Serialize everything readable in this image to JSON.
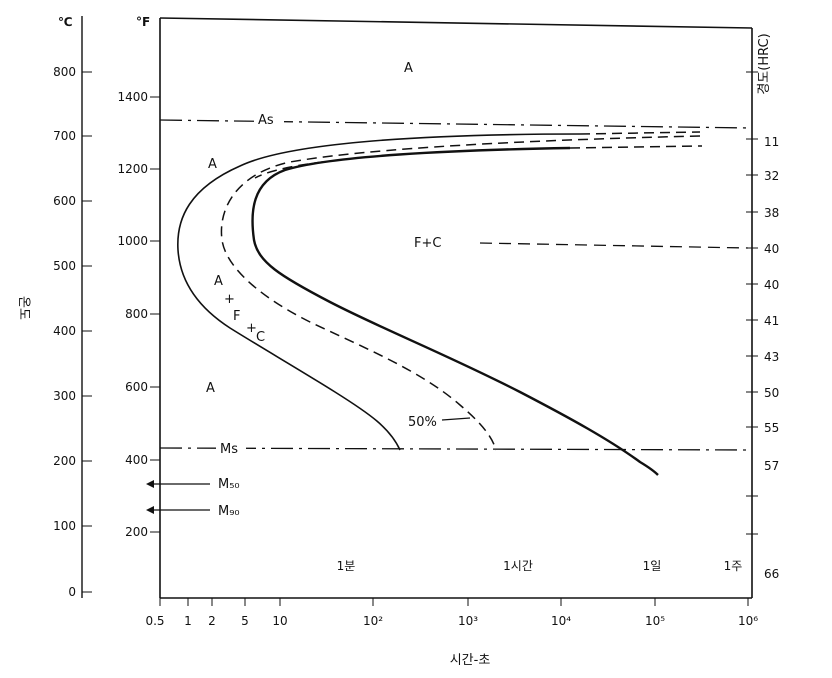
{
  "diagram": {
    "units": {
      "celsius": "℃",
      "fahrenheit": "°F"
    },
    "axis_x_title": "시간-초",
    "axis_y_title": "온도",
    "axis_right_title": "경도(HRC)",
    "celsius_ticks": [
      "800",
      "700",
      "600",
      "500",
      "400",
      "300",
      "200",
      "100",
      "0"
    ],
    "fahrenheit_ticks": [
      "1400",
      "1200",
      "1000",
      "800",
      "600",
      "400",
      "200"
    ],
    "time_ticks": [
      "0.5",
      "1",
      "2",
      "5",
      "10",
      "10²",
      "10³",
      "10⁴",
      "10⁵",
      "10⁶"
    ],
    "hardness_ticks": [
      "11",
      "32",
      "38",
      "40",
      "40",
      "41",
      "43",
      "50",
      "55",
      "57",
      "66"
    ],
    "time_markers": [
      "1분",
      "1시간",
      "1일",
      "1주"
    ],
    "regions": {
      "austenite_top": "A",
      "austenite_left": "A",
      "austenite_low": "A",
      "ferrite_carbide": "F+C",
      "transformation_a": "A",
      "transformation_plus1": "+",
      "transformation_f": "F",
      "transformation_plus2": "+",
      "transformation_c": "C",
      "fifty_percent": "50%"
    },
    "lines": {
      "as": "As",
      "ms": "Ms",
      "m50": "M₅₀",
      "m90": "M₉₀"
    }
  }
}
